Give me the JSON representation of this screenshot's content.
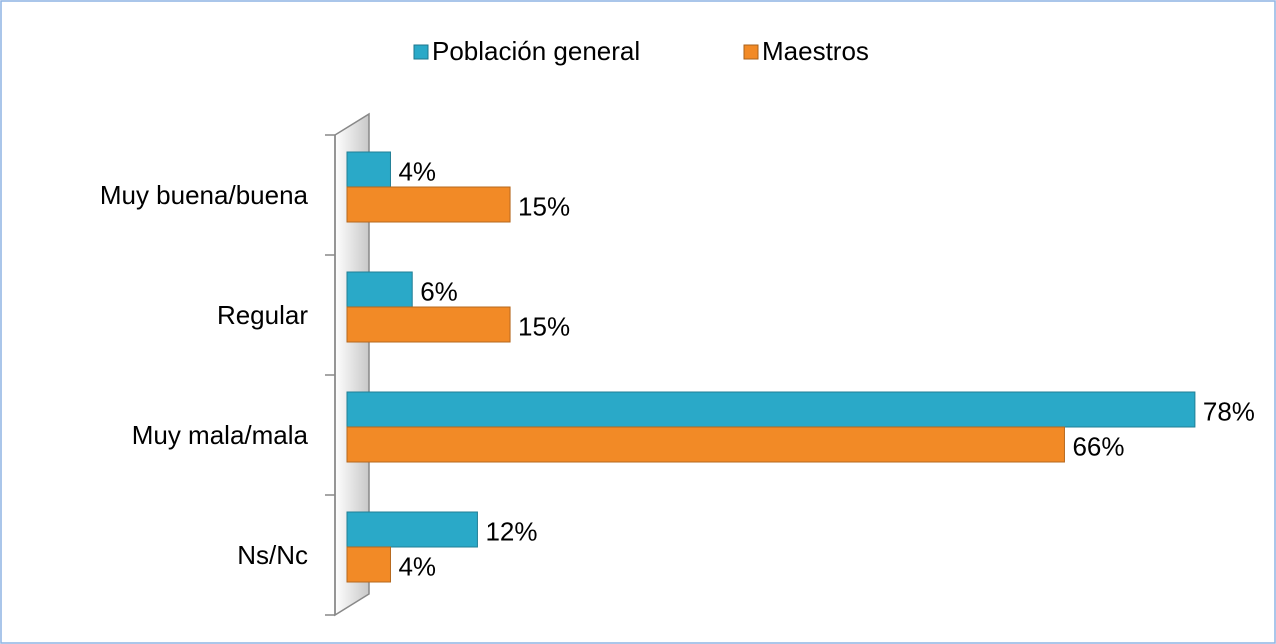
{
  "chart_data": {
    "type": "hbar",
    "categories": [
      "Muy buena/buena",
      "Regular",
      "Muy mala/mala",
      "Ns/Nc"
    ],
    "series": [
      {
        "name": "Población general",
        "color": "#2aa9c8",
        "values": [
          4,
          6,
          78,
          12
        ],
        "value_labels": [
          "4%",
          "6%",
          "78%",
          "12%"
        ]
      },
      {
        "name": "Maestros",
        "color": "#f28a26",
        "values": [
          15,
          15,
          66,
          4
        ],
        "value_labels": [
          "15%",
          "15%",
          "66%",
          "4%"
        ]
      }
    ],
    "xlim": [
      0,
      85
    ],
    "legend": "top"
  }
}
